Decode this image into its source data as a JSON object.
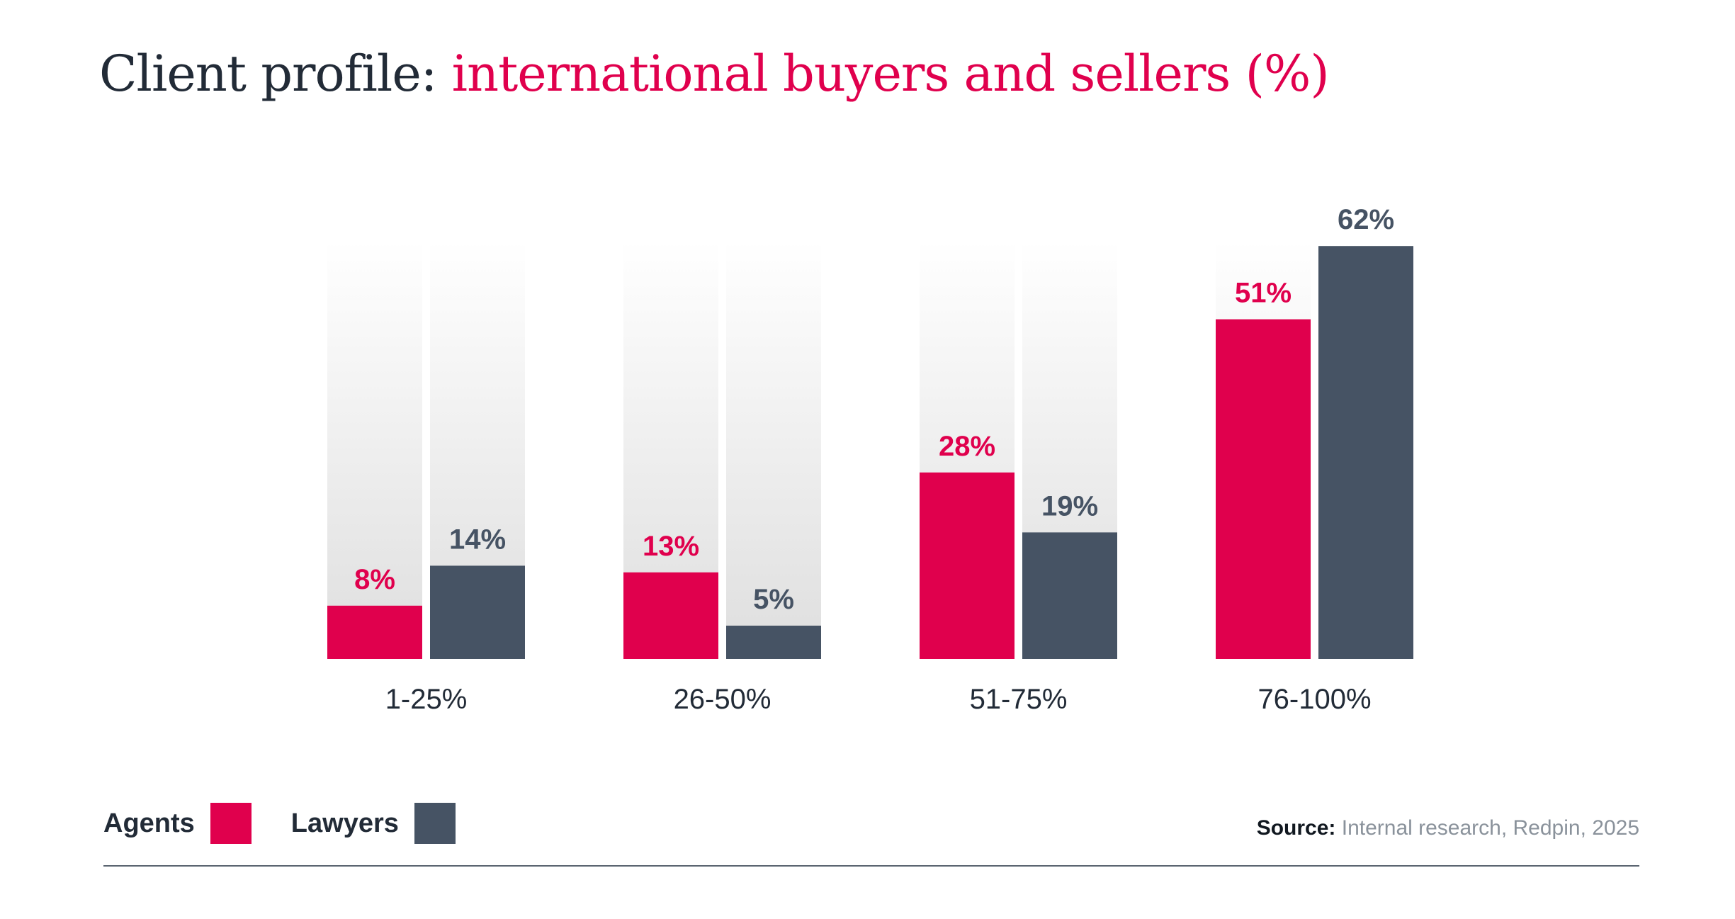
{
  "title": {
    "lead": "Client profile: ",
    "accent": "international buyers and sellers (%)"
  },
  "colors": {
    "agents": "#e0004d",
    "lawyers": "#465364",
    "title_dark": "#222b37",
    "track_top": "#ffffff",
    "track_bottom": "#dedede"
  },
  "legend": [
    {
      "label": "Agents",
      "color": "#e0004d"
    },
    {
      "label": "Lawyers",
      "color": "#465364"
    }
  ],
  "source": {
    "label": "Source:",
    "text": "Internal research, Redpin, 2025"
  },
  "chart_data": {
    "type": "bar",
    "title": "Client profile: international buyers and sellers (%)",
    "categories": [
      "1-25%",
      "26-50%",
      "51-75%",
      "76-100%"
    ],
    "series": [
      {
        "name": "Agents",
        "values": [
          8,
          13,
          28,
          51
        ],
        "labels": [
          "8%",
          "13%",
          "28%",
          "51%"
        ],
        "color": "#e0004d"
      },
      {
        "name": "Lawyers",
        "values": [
          14,
          5,
          19,
          62
        ],
        "labels": [
          "14%",
          "5%",
          "19%",
          "62%"
        ],
        "color": "#465364"
      }
    ],
    "xlabel": "",
    "ylabel": "",
    "ylim": [
      0,
      80
    ],
    "grid": false,
    "legend_position": "bottom-left"
  }
}
